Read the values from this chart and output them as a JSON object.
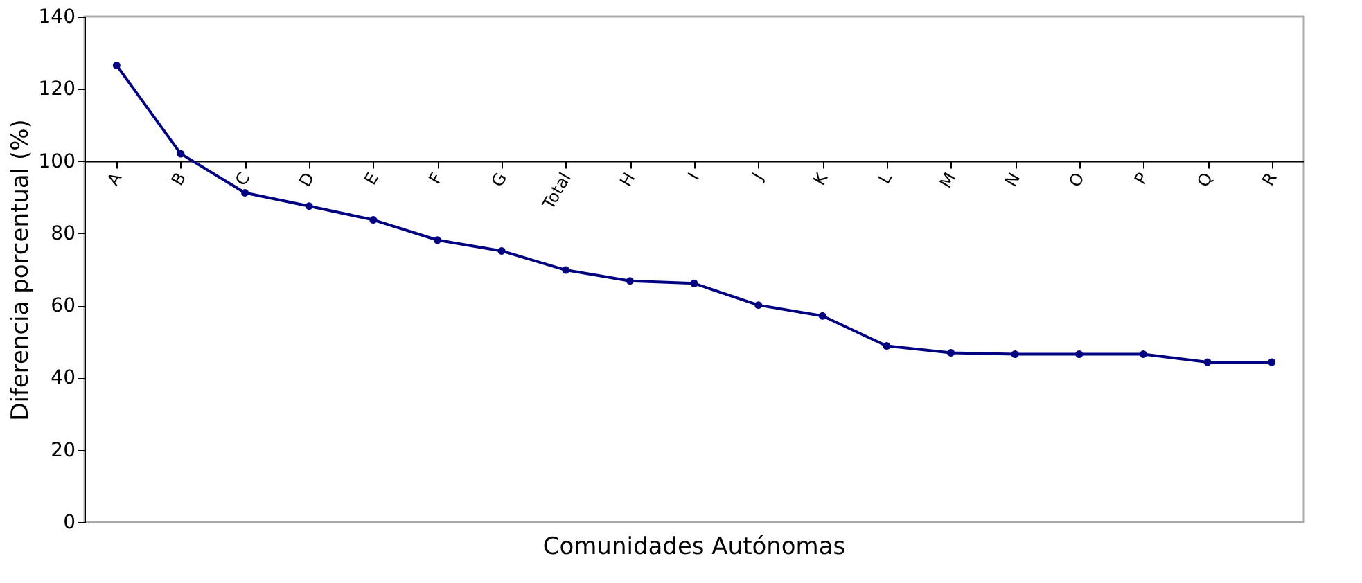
{
  "chart_data": {
    "type": "line",
    "xlabel": "Comunidades Autónomas",
    "ylabel": "Diferencia porcentual (%)",
    "categories": [
      "A",
      "B",
      "C",
      "D",
      "E",
      "F",
      "G",
      "Total",
      "H",
      "I",
      "J",
      "K",
      "L",
      "M",
      "N",
      "O",
      "P",
      "Q",
      "R"
    ],
    "series": [
      {
        "color": "#000080",
        "values": [
          126.5,
          102,
          91.2,
          87.5,
          83.7,
          78.1,
          75.1,
          69.8,
          66.8,
          66.1,
          60.1,
          57.1,
          48.8,
          46.9,
          46.5,
          46.5,
          46.5,
          44.3,
          44.3
        ]
      }
    ],
    "ylim": [
      0,
      140
    ],
    "yticks": [
      0,
      20,
      40,
      60,
      80,
      100,
      120,
      140
    ],
    "marker": "circle",
    "line_style": "solid",
    "grid": false,
    "legend": false
  }
}
